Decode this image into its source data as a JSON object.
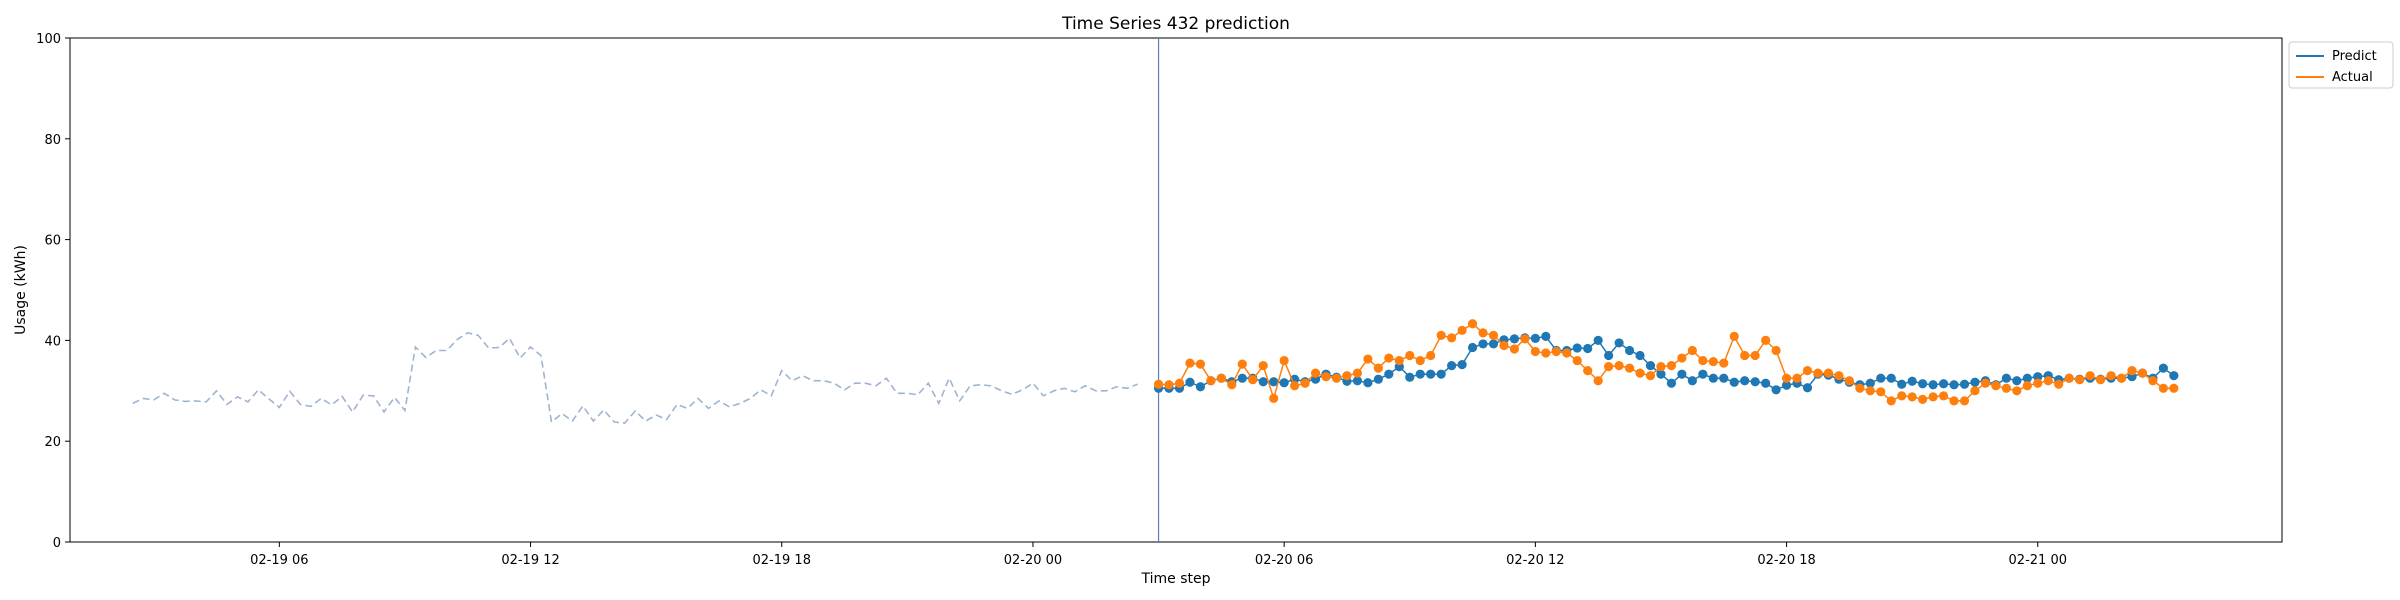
{
  "chart_data": {
    "type": "line",
    "title": "Time Series 432 prediction",
    "xlabel": "Time step",
    "ylabel": "Usage (kWh)",
    "ylim": [
      0,
      100
    ],
    "yticks": [
      0,
      20,
      40,
      60,
      80,
      100
    ],
    "xlim": [
      "2024-02-19 01:00",
      "2024-02-21 05:50"
    ],
    "xticks": [
      "2024-02-19 06:00",
      "2024-02-19 12:00",
      "2024-02-19 18:00",
      "2024-02-20 00:00",
      "2024-02-20 06:00",
      "2024-02-20 12:00",
      "2024-02-20 18:00",
      "2024-02-21 00:00"
    ],
    "xtick_labels": [
      "02-19 06",
      "02-19 12",
      "02-19 18",
      "02-20 00",
      "02-20 06",
      "02-20 12",
      "02-20 18",
      "02-21 00"
    ],
    "grid": false,
    "legend_position": "top-right outside",
    "vline": "2024-02-20 03:00",
    "x_start": "2024-02-19 02:30",
    "x_step_minutes": 15,
    "series": [
      {
        "name": "",
        "style": "dashed",
        "color": "#9fb4d2",
        "offset": 0,
        "values": [
          27.5,
          28.5,
          28.2,
          29.5,
          28.2,
          27.9,
          28.0,
          27.8,
          30.0,
          27.3,
          28.8,
          27.8,
          30.2,
          28.4,
          26.7,
          29.9,
          27.3,
          26.9,
          28.5,
          27.2,
          28.9,
          25.8,
          29.1,
          29.0,
          25.8,
          28.7,
          26.1,
          38.7,
          36.6,
          38.0,
          38.0,
          40.2,
          41.5,
          41.0,
          38.5,
          38.6,
          40.4,
          36.5,
          38.7,
          37.0,
          23.8,
          25.5,
          24.0,
          27.0,
          24.0,
          26.2,
          23.8,
          23.6,
          26.0,
          24.0,
          25.2,
          24.3,
          27.3,
          26.5,
          28.5,
          26.5,
          28.0,
          26.8,
          27.5,
          28.5,
          30.2,
          29.0,
          34.0,
          32.0,
          33.0,
          32.0,
          32.0,
          31.5,
          30.2,
          31.5,
          31.5,
          31.0,
          32.5,
          29.5,
          29.5,
          29.2,
          31.5,
          27.5,
          32.5,
          28.0,
          31.0,
          31.2,
          31.0,
          30.0,
          29.3,
          30.2,
          31.5,
          29.0,
          30.0,
          30.5,
          29.8,
          31.0,
          30.0,
          30.0,
          30.8,
          30.5,
          31.3
        ]
      },
      {
        "name": "Predict",
        "style": "line-markers",
        "color": "#1f77b4",
        "offset": 98,
        "values": [
          30.5,
          30.5,
          30.5,
          31.7,
          30.8,
          32.0,
          32.5,
          31.8,
          32.5,
          32.5,
          31.8,
          31.8,
          31.6,
          32.3,
          31.8,
          32.3,
          33.3,
          32.7,
          31.9,
          32.0,
          31.6,
          32.3,
          33.3,
          34.8,
          32.7,
          33.3,
          33.3,
          33.3,
          35.0,
          35.2,
          38.6,
          39.3,
          39.3,
          40.1,
          40.3,
          40.5,
          40.4,
          40.8,
          38.0,
          38.0,
          38.5,
          38.4,
          40.0,
          37.0,
          39.5,
          38.0,
          37.0,
          35.0,
          33.3,
          31.5,
          33.3,
          32.0,
          33.3,
          32.5,
          32.5,
          31.7,
          32.0,
          31.8,
          31.5,
          30.2,
          31.1,
          31.5,
          30.6,
          33.3,
          33.1,
          32.3,
          31.7,
          31.2,
          31.5,
          32.5,
          32.5,
          31.3,
          31.9,
          31.4,
          31.2,
          31.4,
          31.2,
          31.3,
          31.7,
          32.0,
          31.2,
          32.5,
          32.0,
          32.5,
          32.8,
          33.0,
          32.2,
          32.5,
          32.3,
          32.5,
          32.3,
          32.5,
          32.5,
          32.8,
          33.5,
          32.5,
          34.5,
          33.0
        ]
      },
      {
        "name": "Actual",
        "style": "line-markers",
        "color": "#ff7f0e",
        "offset": 98,
        "values": [
          31.3,
          31.2,
          31.5,
          35.5,
          35.3,
          32.0,
          32.5,
          31.2,
          35.3,
          32.2,
          35.0,
          28.5,
          36.0,
          31.0,
          31.5,
          33.5,
          32.8,
          32.5,
          33.0,
          33.5,
          36.3,
          34.5,
          36.5,
          36.0,
          37.0,
          36.0,
          37.0,
          41.0,
          40.5,
          42.0,
          43.3,
          41.5,
          41.0,
          39.0,
          38.3,
          40.3,
          37.8,
          37.5,
          37.8,
          37.5,
          36.0,
          34.0,
          32.0,
          34.8,
          35.0,
          34.5,
          33.5,
          33.0,
          34.8,
          35.0,
          36.5,
          38.0,
          36.0,
          35.8,
          35.5,
          40.8,
          37.0,
          37.0,
          40.0,
          38.0,
          32.5,
          32.5,
          34.0,
          33.5,
          33.5,
          33.0,
          32.0,
          30.5,
          30.0,
          29.8,
          28.0,
          29.0,
          28.8,
          28.3,
          28.8,
          29.0,
          28.0,
          28.0,
          30.0,
          31.5,
          31.0,
          30.5,
          30.0,
          31.0,
          31.5,
          32.0,
          31.3,
          32.5,
          32.2,
          33.0,
          32.2,
          33.0,
          32.5,
          34.0,
          33.5,
          32.0,
          30.5,
          30.5
        ]
      }
    ]
  }
}
